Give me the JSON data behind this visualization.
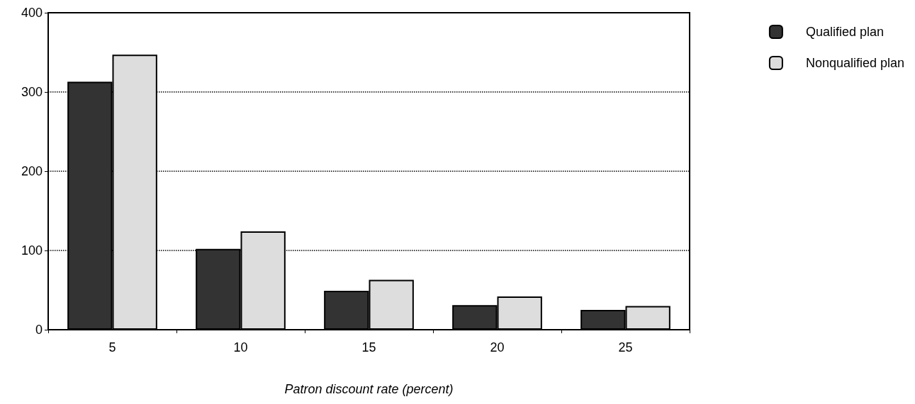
{
  "chart_data": {
    "type": "bar",
    "xlabel": "Patron discount rate (percent)",
    "categories": [
      "5",
      "10",
      "15",
      "20",
      "25"
    ],
    "series": [
      {
        "name": "Qualified plan",
        "color": "#333333",
        "values": [
          313,
          102,
          49,
          31,
          25
        ]
      },
      {
        "name": "Nonqualified plan",
        "color": "#dddddd",
        "values": [
          347,
          124,
          63,
          42,
          30
        ]
      }
    ],
    "ylim": [
      0,
      400
    ],
    "yticks": [
      0,
      100,
      200,
      300,
      400
    ],
    "grid": "y",
    "legend": "top right"
  }
}
